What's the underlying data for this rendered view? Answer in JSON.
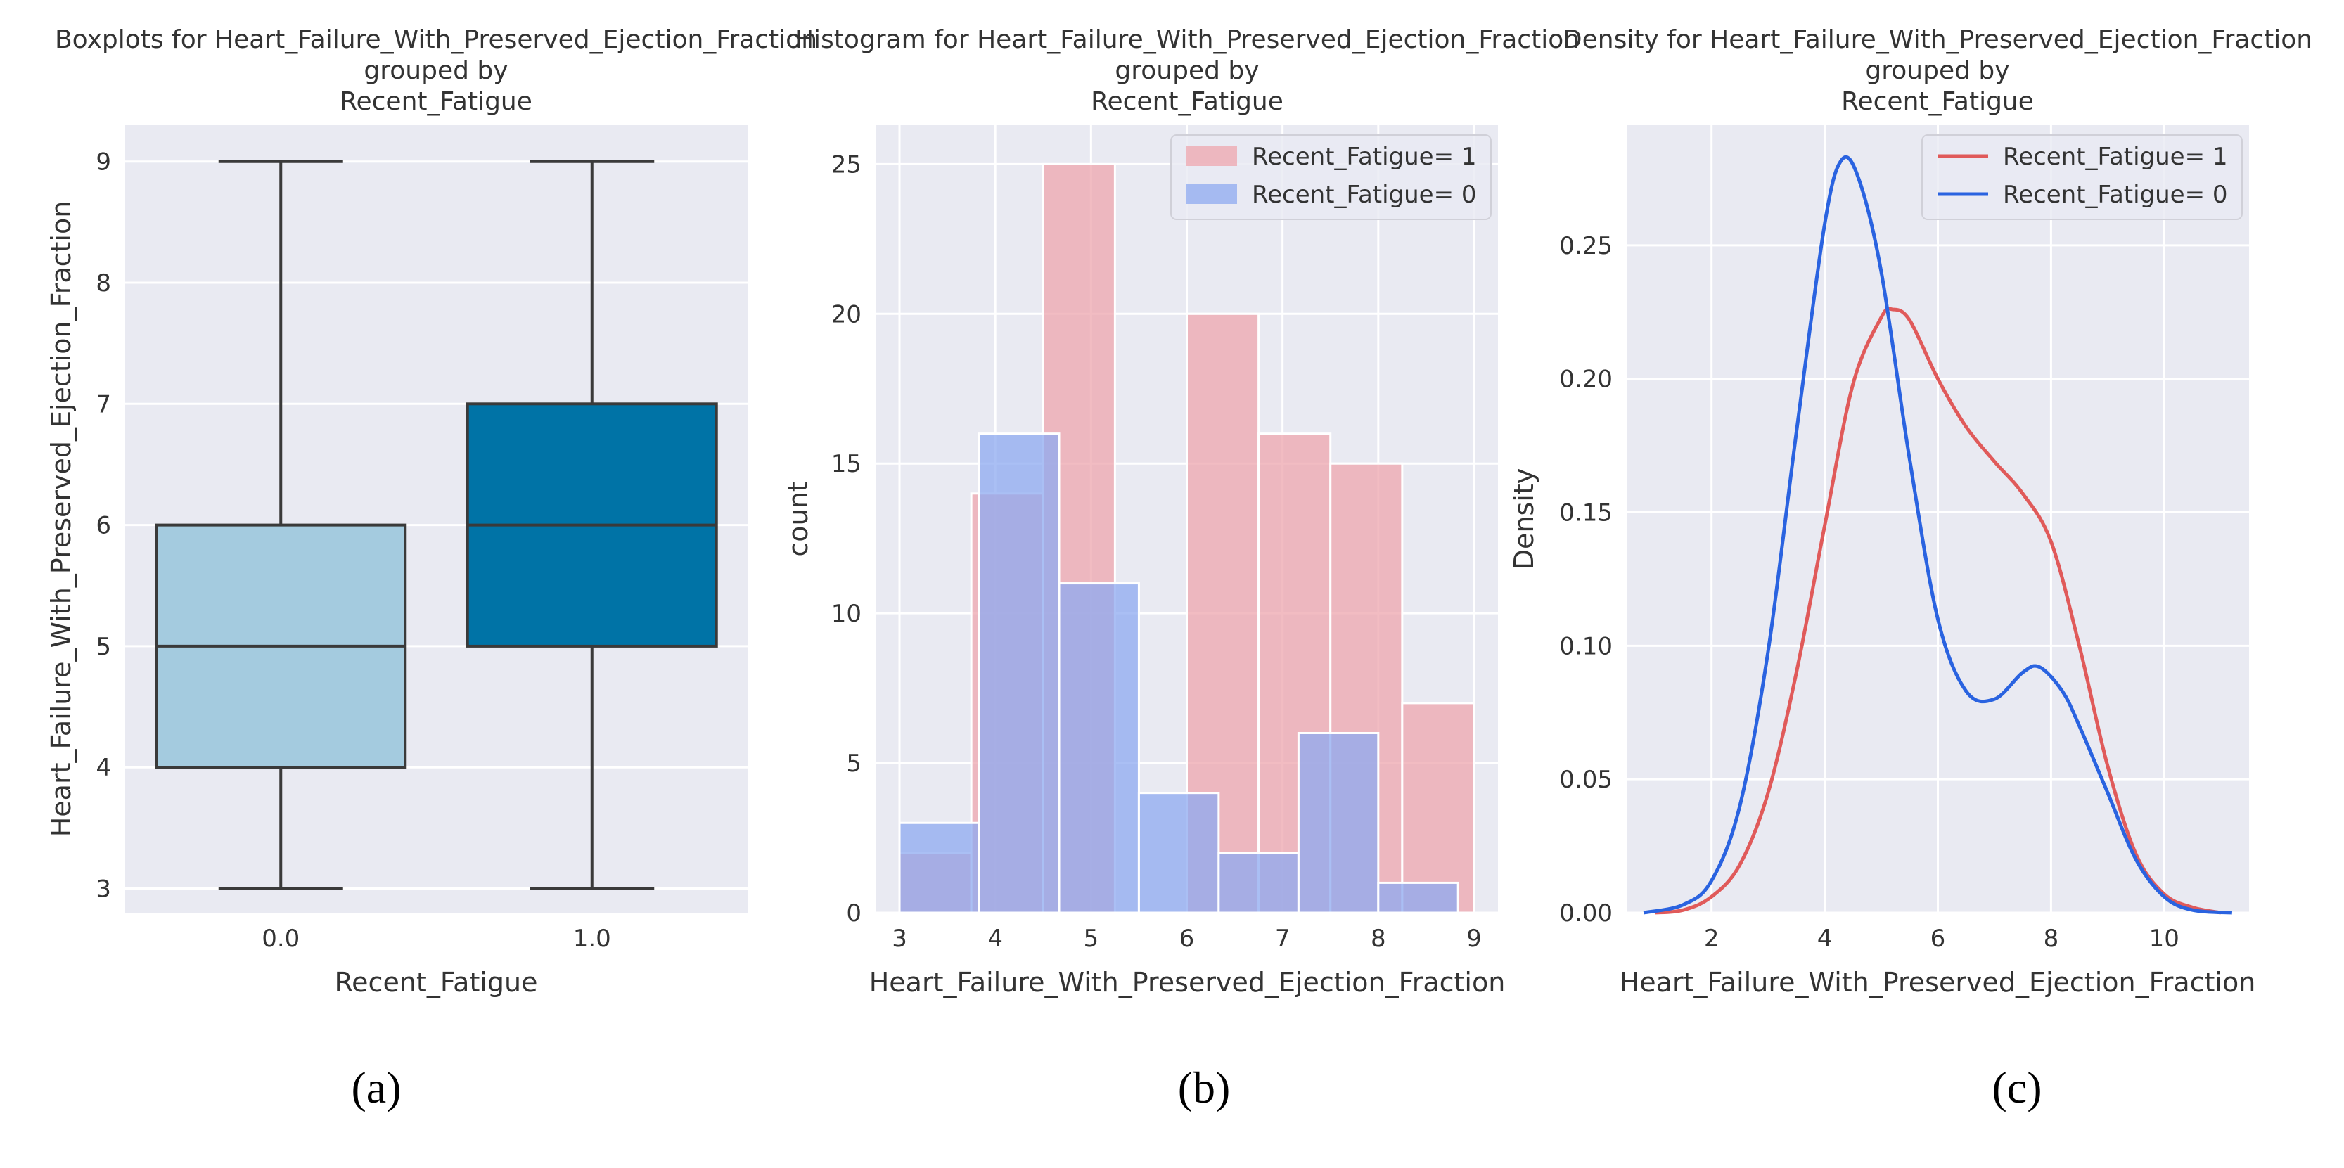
{
  "colors": {
    "panel_bg": "#e9eaf2",
    "grid": "#ffffff",
    "box_fatigue_0": "#a4cbdf",
    "box_fatigue_1": "#0073a6",
    "box_edge": "#3a3a3a",
    "hist_fatigue_1": "#eda5ad",
    "hist_fatigue_0": "#8eaaf0",
    "kde_fatigue_1": "#e05a5a",
    "kde_fatigue_0": "#2a63e0",
    "text": "#333333"
  },
  "panels": {
    "a": {
      "title_lines": [
        "Boxplots for Heart_Failure_With_Preserved_Ejection_Fraction",
        "grouped by",
        "Recent_Fatigue"
      ],
      "caption": "(a)"
    },
    "b": {
      "title_lines": [
        "Histogram for Heart_Failure_With_Preserved_Ejection_Fraction",
        "grouped by",
        "Recent_Fatigue"
      ],
      "caption": "(b)"
    },
    "c": {
      "title_lines": [
        "Density for Heart_Failure_With_Preserved_Ejection_Fraction",
        "grouped by",
        "Recent_Fatigue"
      ],
      "caption": "(c)"
    }
  },
  "chart_data": [
    {
      "type": "box",
      "title": "Boxplots for Heart_Failure_With_Preserved_Ejection_Fraction grouped by Recent_Fatigue",
      "xlabel": "Recent_Fatigue",
      "ylabel": "Heart_Failure_With_Preserved_Ejection_Fraction",
      "ylim": [
        2.8,
        9.3
      ],
      "yticks": [
        3,
        4,
        5,
        6,
        7,
        8,
        9
      ],
      "categories": [
        "0.0",
        "1.0"
      ],
      "boxes": [
        {
          "category": "0.0",
          "min": 3,
          "q1": 4,
          "median": 5,
          "q3": 6,
          "max": 9
        },
        {
          "category": "1.0",
          "min": 3,
          "q1": 5,
          "median": 6,
          "q3": 7,
          "max": 9
        }
      ],
      "grid": true
    },
    {
      "type": "bar",
      "subtype": "histogram",
      "title": "Histogram for Heart_Failure_With_Preserved_Ejection_Fraction grouped by Recent_Fatigue",
      "xlabel": "Heart_Failure_With_Preserved_Ejection_Fraction",
      "ylabel": "count",
      "xlim": [
        2.75,
        9.25
      ],
      "ylim": [
        0,
        26.3
      ],
      "xticks": [
        3,
        4,
        5,
        6,
        7,
        8,
        9
      ],
      "yticks": [
        0,
        5,
        10,
        15,
        20,
        25
      ],
      "legend_position": "top-right",
      "series": [
        {
          "name": "Recent_Fatigue= 1",
          "bins": [
            {
              "x0": 3.0,
              "x1": 3.75,
              "count": 2
            },
            {
              "x0": 3.75,
              "x1": 4.5,
              "count": 14
            },
            {
              "x0": 4.5,
              "x1": 5.25,
              "count": 25
            },
            {
              "x0": 6.0,
              "x1": 6.75,
              "count": 20
            },
            {
              "x0": 6.75,
              "x1": 7.5,
              "count": 16
            },
            {
              "x0": 7.5,
              "x1": 8.25,
              "count": 15
            },
            {
              "x0": 8.25,
              "x1": 9.0,
              "count": 7
            }
          ]
        },
        {
          "name": "Recent_Fatigue= 0",
          "bins": [
            {
              "x0": 3.0,
              "x1": 3.833,
              "count": 3
            },
            {
              "x0": 3.833,
              "x1": 4.667,
              "count": 16
            },
            {
              "x0": 4.667,
              "x1": 5.5,
              "count": 11
            },
            {
              "x0": 5.5,
              "x1": 6.333,
              "count": 4
            },
            {
              "x0": 6.333,
              "x1": 7.167,
              "count": 2
            },
            {
              "x0": 7.167,
              "x1": 8.0,
              "count": 6
            },
            {
              "x0": 8.0,
              "x1": 8.833,
              "count": 1
            }
          ]
        }
      ]
    },
    {
      "type": "line",
      "subtype": "density",
      "title": "Density for Heart_Failure_With_Preserved_Ejection_Fraction grouped by Recent_Fatigue",
      "xlabel": "Heart_Failure_With_Preserved_Ejection_Fraction",
      "ylabel": "Density",
      "xlim": [
        0.5,
        11.5
      ],
      "ylim": [
        0,
        0.295
      ],
      "xticks": [
        2,
        4,
        6,
        8,
        10
      ],
      "yticks": [
        0.0,
        0.05,
        0.1,
        0.15,
        0.2,
        0.25
      ],
      "ytick_labels": [
        "0.00",
        "0.05",
        "0.10",
        "0.15",
        "0.20",
        "0.25"
      ],
      "legend_position": "top-right",
      "series": [
        {
          "name": "Recent_Fatigue= 1",
          "x": [
            1.0,
            1.5,
            2.0,
            2.5,
            3.0,
            3.5,
            4.0,
            4.5,
            5.0,
            5.2,
            5.5,
            6.0,
            6.5,
            7.0,
            7.5,
            8.0,
            8.5,
            9.0,
            9.5,
            10.0,
            10.5,
            11.0
          ],
          "y": [
            0.0,
            0.001,
            0.006,
            0.018,
            0.045,
            0.09,
            0.145,
            0.198,
            0.223,
            0.226,
            0.222,
            0.2,
            0.182,
            0.169,
            0.157,
            0.139,
            0.1,
            0.055,
            0.022,
            0.007,
            0.002,
            0.0
          ]
        },
        {
          "name": "Recent_Fatigue= 0",
          "x": [
            0.8,
            1.5,
            2.0,
            2.5,
            3.0,
            3.5,
            4.0,
            4.3,
            4.6,
            5.0,
            5.5,
            6.0,
            6.5,
            7.0,
            7.5,
            7.8,
            8.2,
            8.5,
            9.0,
            9.5,
            10.0,
            10.5,
            11.2
          ],
          "y": [
            0.0,
            0.003,
            0.012,
            0.04,
            0.098,
            0.18,
            0.258,
            0.282,
            0.275,
            0.24,
            0.17,
            0.11,
            0.083,
            0.08,
            0.09,
            0.092,
            0.083,
            0.07,
            0.045,
            0.02,
            0.006,
            0.001,
            0.0
          ]
        }
      ]
    }
  ]
}
